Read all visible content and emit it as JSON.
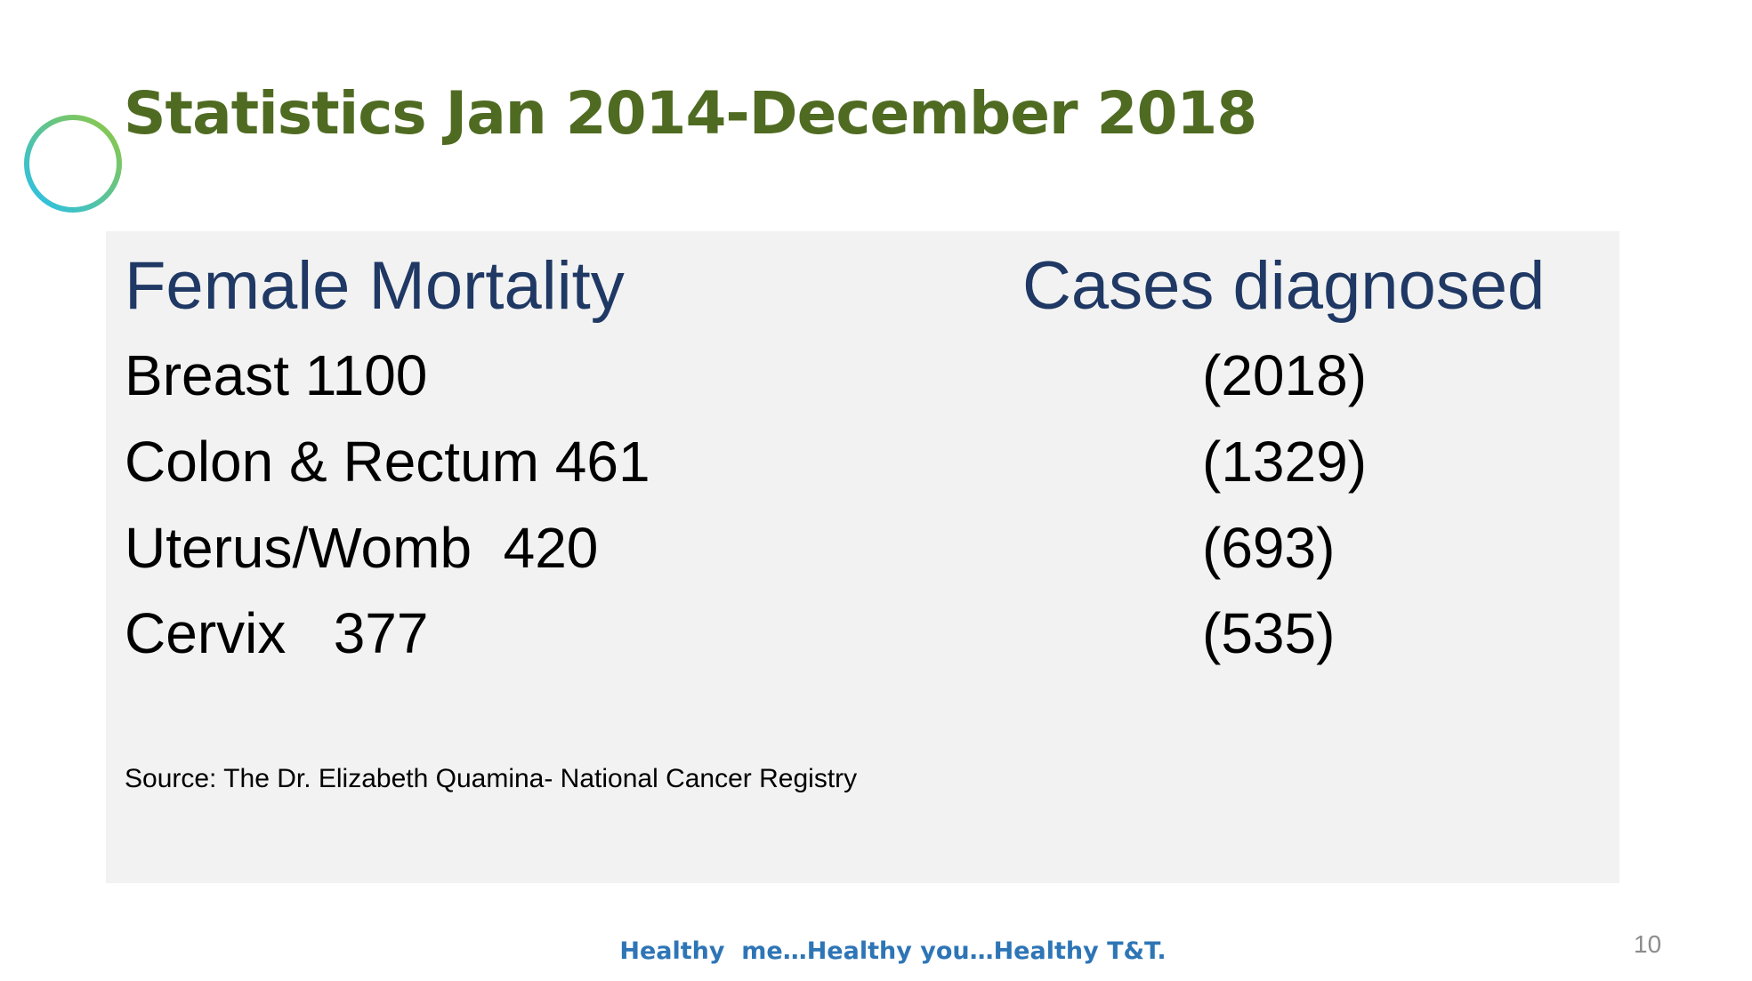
{
  "slide": {
    "title": "Statistics Jan 2014-December 2018",
    "page_number": "10",
    "tagline": "Healthy  me…Healthy you…Healthy T&T."
  },
  "colors": {
    "title": "#4f6b22",
    "heading": "#1f3864",
    "panel_bg": "#f2f2f2",
    "tagline": "#2e75b6",
    "gradient_start": "#92c83e",
    "gradient_end": "#25c0f0"
  },
  "table": {
    "left_header": "Female Mortality",
    "right_header": "Cases diagnosed",
    "rows": [
      {
        "label": "Breast 1100",
        "cases": "(2018)"
      },
      {
        "label": "Colon & Rectum 461",
        "cases": "(1329)"
      },
      {
        "label": "Uterus/Womb  420",
        "cases": "(693)"
      },
      {
        "label": "Cervix   377",
        "cases": "(535)"
      }
    ],
    "source": "Source: The Dr. Elizabeth Quamina- National Cancer Registry"
  }
}
